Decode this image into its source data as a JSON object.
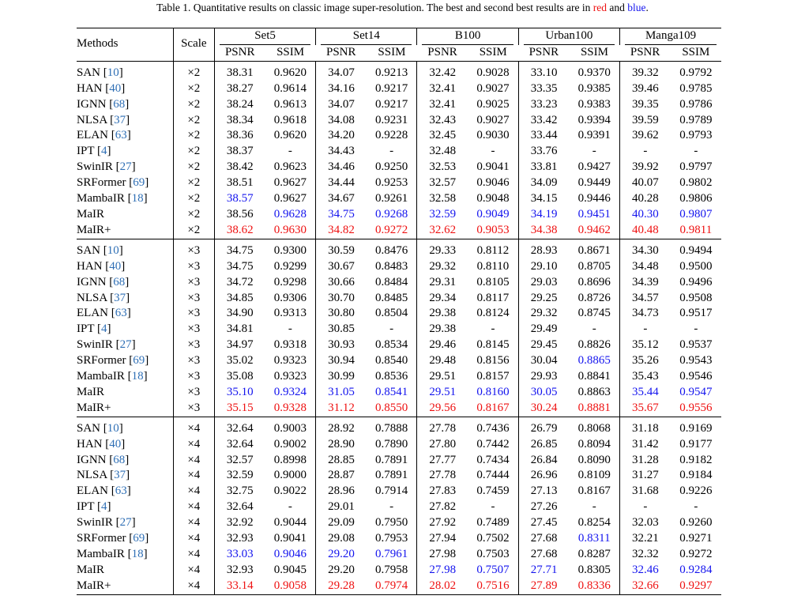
{
  "caption": {
    "prefix": "Table 1. Quantitative results on classic image super-resolution. The best and second best results are in",
    "red_word": "red",
    "and_word": "and",
    "blue_word": "blue",
    "period": "."
  },
  "colors": {
    "best": "#ee1111",
    "second": "#1414ee",
    "citation": "#2f6fb5"
  },
  "header": {
    "methods": "Methods",
    "scale": "Scale",
    "datasets": [
      "Set5",
      "Set14",
      "B100",
      "Urban100",
      "Manga109"
    ],
    "psnr": "PSNR",
    "ssim": "SSIM"
  },
  "blocks": [
    {
      "scale": "×2",
      "rows": [
        {
          "name": "SAN",
          "ref": "10",
          "v": [
            "38.31",
            "0.9620",
            "34.07",
            "0.9213",
            "32.42",
            "0.9028",
            "33.10",
            "0.9370",
            "39.32",
            "0.9792"
          ]
        },
        {
          "name": "HAN",
          "ref": "40",
          "v": [
            "38.27",
            "0.9614",
            "34.16",
            "0.9217",
            "32.41",
            "0.9027",
            "33.35",
            "0.9385",
            "39.46",
            "0.9785"
          ]
        },
        {
          "name": "IGNN",
          "ref": "68",
          "v": [
            "38.24",
            "0.9613",
            "34.07",
            "0.9217",
            "32.41",
            "0.9025",
            "33.23",
            "0.9383",
            "39.35",
            "0.9786"
          ]
        },
        {
          "name": "NLSA",
          "ref": "37",
          "v": [
            "38.34",
            "0.9618",
            "34.08",
            "0.9231",
            "32.43",
            "0.9027",
            "33.42",
            "0.9394",
            "39.59",
            "0.9789"
          ]
        },
        {
          "name": "ELAN",
          "ref": "63",
          "v": [
            "38.36",
            "0.9620",
            "34.20",
            "0.9228",
            "32.45",
            "0.9030",
            "33.44",
            "0.9391",
            "39.62",
            "0.9793"
          ]
        },
        {
          "name": "IPT",
          "ref": "4",
          "v": [
            "38.37",
            "-",
            "34.43",
            "-",
            "32.48",
            "-",
            "33.76",
            "-",
            "-",
            "-"
          ]
        },
        {
          "name": "SwinIR",
          "ref": "27",
          "v": [
            "38.42",
            "0.9623",
            "34.46",
            "0.9250",
            "32.53",
            "0.9041",
            "33.81",
            "0.9427",
            "39.92",
            "0.9797"
          ]
        },
        {
          "name": "SRFormer",
          "ref": "69",
          "v": [
            "38.51",
            "0.9627",
            "34.44",
            "0.9253",
            "32.57",
            "0.9046",
            "34.09",
            "0.9449",
            "40.07",
            "0.9802"
          ]
        },
        {
          "name": "MambaIR",
          "ref": "18",
          "v": [
            "38.57",
            "0.9627",
            "34.67",
            "0.9261",
            "32.58",
            "0.9048",
            "34.15",
            "0.9446",
            "40.28",
            "0.9806"
          ],
          "c": [
            "b",
            "",
            "",
            "",
            "",
            "",
            "",
            "",
            "",
            ""
          ]
        },
        {
          "name": "MaIR",
          "ref": "",
          "v": [
            "38.56",
            "0.9628",
            "34.75",
            "0.9268",
            "32.59",
            "0.9049",
            "34.19",
            "0.9451",
            "40.30",
            "0.9807"
          ],
          "c": [
            "",
            "b",
            "b",
            "b",
            "b",
            "b",
            "b",
            "b",
            "b",
            "b"
          ]
        },
        {
          "name": "MaIR+",
          "ref": "",
          "v": [
            "38.62",
            "0.9630",
            "34.82",
            "0.9272",
            "32.62",
            "0.9053",
            "34.38",
            "0.9462",
            "40.48",
            "0.9811"
          ],
          "c": [
            "r",
            "r",
            "r",
            "r",
            "r",
            "r",
            "r",
            "r",
            "r",
            "r"
          ]
        }
      ]
    },
    {
      "scale": "×3",
      "rows": [
        {
          "name": "SAN",
          "ref": "10",
          "v": [
            "34.75",
            "0.9300",
            "30.59",
            "0.8476",
            "29.33",
            "0.8112",
            "28.93",
            "0.8671",
            "34.30",
            "0.9494"
          ]
        },
        {
          "name": "HAN",
          "ref": "40",
          "v": [
            "34.75",
            "0.9299",
            "30.67",
            "0.8483",
            "29.32",
            "0.8110",
            "29.10",
            "0.8705",
            "34.48",
            "0.9500"
          ]
        },
        {
          "name": "IGNN",
          "ref": "68",
          "v": [
            "34.72",
            "0.9298",
            "30.66",
            "0.8484",
            "29.31",
            "0.8105",
            "29.03",
            "0.8696",
            "34.39",
            "0.9496"
          ]
        },
        {
          "name": "NLSA",
          "ref": "37",
          "v": [
            "34.85",
            "0.9306",
            "30.70",
            "0.8485",
            "29.34",
            "0.8117",
            "29.25",
            "0.8726",
            "34.57",
            "0.9508"
          ]
        },
        {
          "name": "ELAN",
          "ref": "63",
          "v": [
            "34.90",
            "0.9313",
            "30.80",
            "0.8504",
            "29.38",
            "0.8124",
            "29.32",
            "0.8745",
            "34.73",
            "0.9517"
          ]
        },
        {
          "name": "IPT",
          "ref": "4",
          "v": [
            "34.81",
            "-",
            "30.85",
            "-",
            "29.38",
            "-",
            "29.49",
            "-",
            "-",
            "-"
          ]
        },
        {
          "name": "SwinIR",
          "ref": "27",
          "v": [
            "34.97",
            "0.9318",
            "30.93",
            "0.8534",
            "29.46",
            "0.8145",
            "29.45",
            "0.8826",
            "35.12",
            "0.9537"
          ]
        },
        {
          "name": "SRFormer",
          "ref": "69",
          "v": [
            "35.02",
            "0.9323",
            "30.94",
            "0.8540",
            "29.48",
            "0.8156",
            "30.04",
            "0.8865",
            "35.26",
            "0.9543"
          ],
          "c": [
            "",
            "",
            "",
            "",
            "",
            "",
            "",
            "b",
            "",
            ""
          ]
        },
        {
          "name": "MambaIR",
          "ref": "18",
          "v": [
            "35.08",
            "0.9323",
            "30.99",
            "0.8536",
            "29.51",
            "0.8157",
            "29.93",
            "0.8841",
            "35.43",
            "0.9546"
          ]
        },
        {
          "name": "MaIR",
          "ref": "",
          "v": [
            "35.10",
            "0.9324",
            "31.05",
            "0.8541",
            "29.51",
            "0.8160",
            "30.05",
            "0.8863",
            "35.44",
            "0.9547"
          ],
          "c": [
            "b",
            "b",
            "b",
            "b",
            "b",
            "b",
            "b",
            "",
            "b",
            "b"
          ]
        },
        {
          "name": "MaIR+",
          "ref": "",
          "v": [
            "35.15",
            "0.9328",
            "31.12",
            "0.8550",
            "29.56",
            "0.8167",
            "30.24",
            "0.8881",
            "35.67",
            "0.9556"
          ],
          "c": [
            "r",
            "r",
            "r",
            "r",
            "r",
            "r",
            "r",
            "r",
            "r",
            "r"
          ]
        }
      ]
    },
    {
      "scale": "×4",
      "rows": [
        {
          "name": "SAN",
          "ref": "10",
          "v": [
            "32.64",
            "0.9003",
            "28.92",
            "0.7888",
            "27.78",
            "0.7436",
            "26.79",
            "0.8068",
            "31.18",
            "0.9169"
          ]
        },
        {
          "name": "HAN",
          "ref": "40",
          "v": [
            "32.64",
            "0.9002",
            "28.90",
            "0.7890",
            "27.80",
            "0.7442",
            "26.85",
            "0.8094",
            "31.42",
            "0.9177"
          ]
        },
        {
          "name": "IGNN",
          "ref": "68",
          "v": [
            "32.57",
            "0.8998",
            "28.85",
            "0.7891",
            "27.77",
            "0.7434",
            "26.84",
            "0.8090",
            "31.28",
            "0.9182"
          ]
        },
        {
          "name": "NLSA",
          "ref": "37",
          "v": [
            "32.59",
            "0.9000",
            "28.87",
            "0.7891",
            "27.78",
            "0.7444",
            "26.96",
            "0.8109",
            "31.27",
            "0.9184"
          ]
        },
        {
          "name": "ELAN",
          "ref": "63",
          "v": [
            "32.75",
            "0.9022",
            "28.96",
            "0.7914",
            "27.83",
            "0.7459",
            "27.13",
            "0.8167",
            "31.68",
            "0.9226"
          ]
        },
        {
          "name": "IPT",
          "ref": "4",
          "v": [
            "32.64",
            "-",
            "29.01",
            "-",
            "27.82",
            "-",
            "27.26",
            "-",
            "-",
            "-"
          ]
        },
        {
          "name": "SwinIR",
          "ref": "27",
          "v": [
            "32.92",
            "0.9044",
            "29.09",
            "0.7950",
            "27.92",
            "0.7489",
            "27.45",
            "0.8254",
            "32.03",
            "0.9260"
          ]
        },
        {
          "name": "SRFormer",
          "ref": "69",
          "v": [
            "32.93",
            "0.9041",
            "29.08",
            "0.7953",
            "27.94",
            "0.7502",
            "27.68",
            "0.8311",
            "32.21",
            "0.9271"
          ],
          "c": [
            "",
            "",
            "",
            "",
            "",
            "",
            "",
            "b",
            "",
            ""
          ]
        },
        {
          "name": "MambaIR",
          "ref": "18",
          "v": [
            "33.03",
            "0.9046",
            "29.20",
            "0.7961",
            "27.98",
            "0.7503",
            "27.68",
            "0.8287",
            "32.32",
            "0.9272"
          ],
          "c": [
            "b",
            "b",
            "b",
            "b",
            "",
            "",
            "",
            "",
            "",
            ""
          ]
        },
        {
          "name": "MaIR",
          "ref": "",
          "v": [
            "32.93",
            "0.9045",
            "29.20",
            "0.7958",
            "27.98",
            "0.7507",
            "27.71",
            "0.8305",
            "32.46",
            "0.9284"
          ],
          "c": [
            "",
            "",
            "",
            "",
            "b",
            "b",
            "b",
            "",
            "b",
            "b"
          ]
        },
        {
          "name": "MaIR+",
          "ref": "",
          "v": [
            "33.14",
            "0.9058",
            "29.28",
            "0.7974",
            "28.02",
            "0.7516",
            "27.89",
            "0.8336",
            "32.66",
            "0.9297"
          ],
          "c": [
            "r",
            "r",
            "r",
            "r",
            "r",
            "r",
            "r",
            "r",
            "r",
            "r"
          ]
        }
      ]
    }
  ]
}
